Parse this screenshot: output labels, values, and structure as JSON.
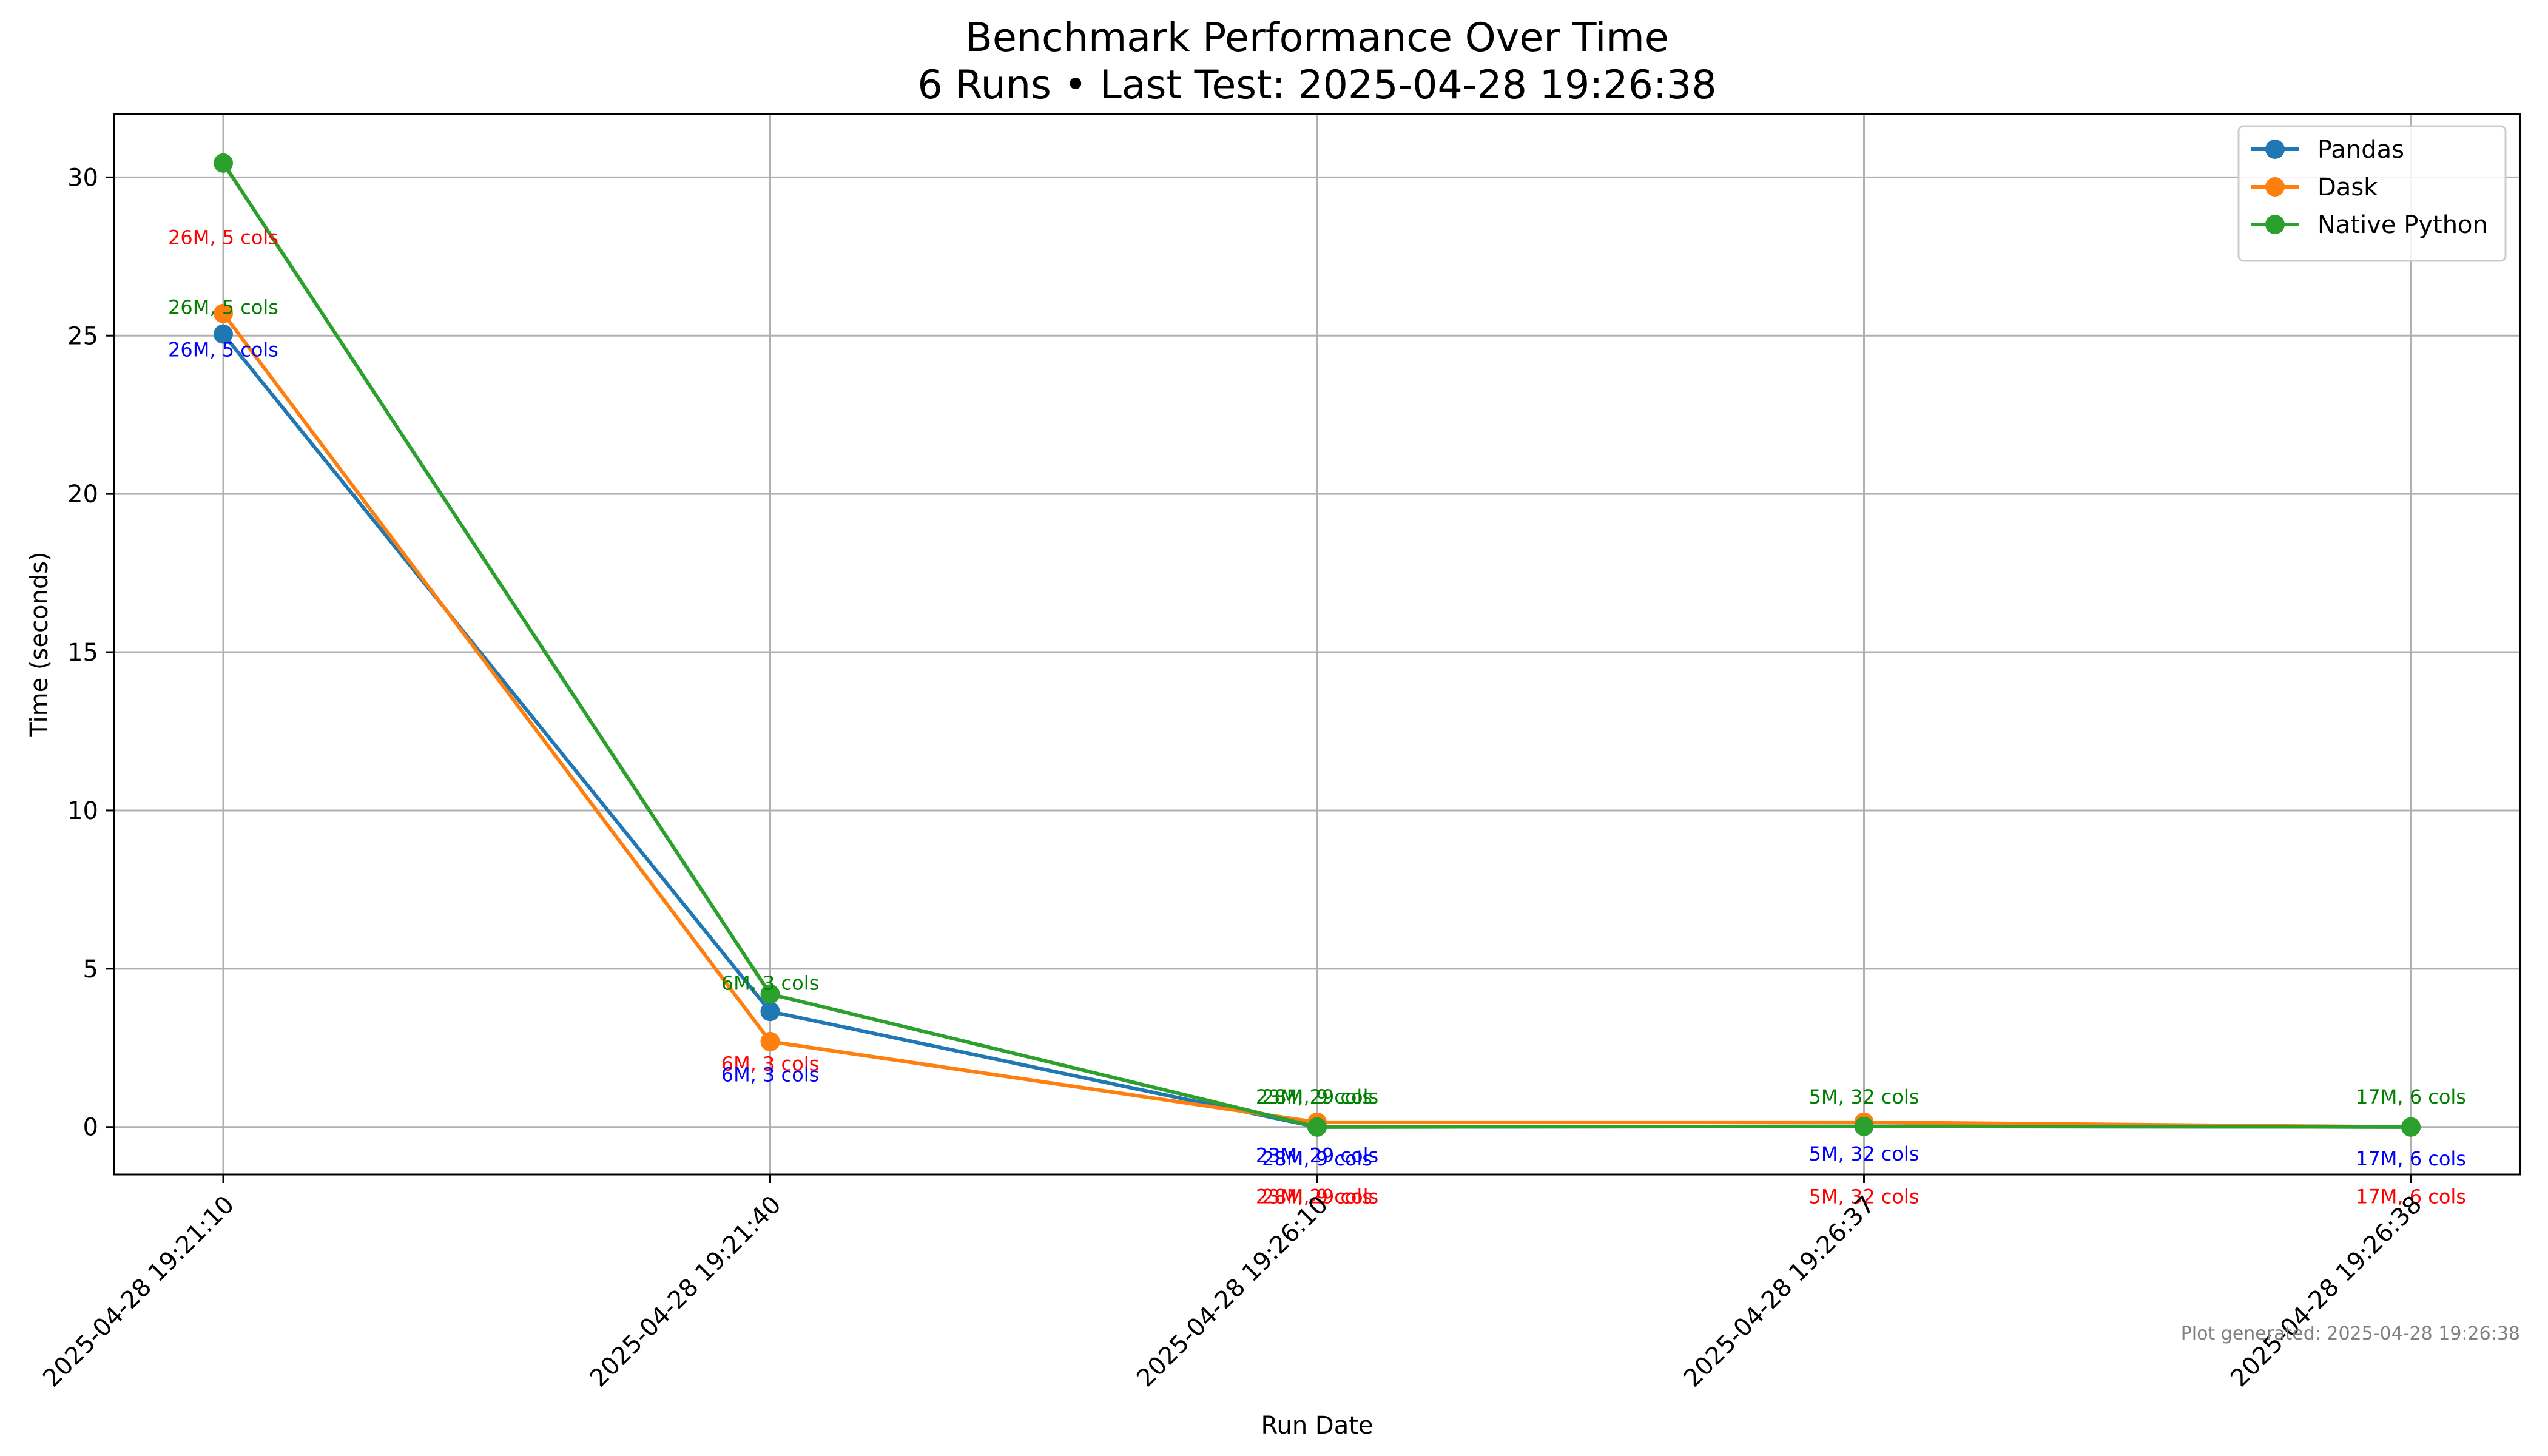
{
  "chart_data": {
    "type": "line",
    "title": "Benchmark Performance Over Time",
    "subtitle": "6 Runs • Last Test: 2025-04-28 19:26:38",
    "xlabel": "Run Date",
    "ylabel": "Time (seconds)",
    "categories": [
      "2025-04-28 19:21:10",
      "2025-04-28 19:21:40",
      "2025-04-28 19:26:10",
      "2025-04-28 19:26:37",
      "2025-04-28 19:26:38"
    ],
    "ylim": [
      -1.5,
      32
    ],
    "yticks": [
      0,
      5,
      10,
      15,
      20,
      25,
      30
    ],
    "grid": true,
    "legend_position": "top-right",
    "series": [
      {
        "name": "Pandas",
        "color": "#1f77b4",
        "values": [
          25.05,
          3.65,
          0.0,
          0.02,
          0.0
        ]
      },
      {
        "name": "Dask",
        "color": "#ff7f0e",
        "values": [
          25.7,
          2.7,
          0.15,
          0.15,
          0.0
        ]
      },
      {
        "name": "Native Python",
        "color": "#2ca02c",
        "values": [
          30.45,
          4.2,
          0.0,
          0.02,
          0.0
        ]
      }
    ],
    "annotations": [
      {
        "text": "26M, 5 cols",
        "color": "#ff0000",
        "index": 0,
        "y": 28.1
      },
      {
        "text": "26M, 5 cols",
        "color": "#008000",
        "index": 0,
        "y": 25.9
      },
      {
        "text": "26M, 5 cols",
        "color": "#0000ff",
        "index": 0,
        "y": 24.55
      },
      {
        "text": "6M, 3 cols",
        "color": "#008000",
        "index": 1,
        "y": 4.55
      },
      {
        "text": "6M, 3 cols",
        "color": "#ff0000",
        "index": 1,
        "y": 2.0
      },
      {
        "text": "6M, 3 cols",
        "color": "#0000ff",
        "index": 1,
        "y": 1.65
      },
      {
        "text": "23M, 29 cols",
        "color": "#008000",
        "index": 2,
        "y": 0.95
      },
      {
        "text": "28M, 9 cols",
        "color": "#008000",
        "index": 2,
        "y": 0.95
      },
      {
        "text": "23M, 29 cols",
        "color": "#0000ff",
        "index": 2,
        "y": -0.9
      },
      {
        "text": "28M, 9 cols",
        "color": "#0000ff",
        "index": 2,
        "y": -1.0
      },
      {
        "text": "23M, 29 cols",
        "color": "#ff0000",
        "index": 2,
        "y": -2.2
      },
      {
        "text": "28M, 9 cols",
        "color": "#ff0000",
        "index": 2,
        "y": -2.2
      },
      {
        "text": "5M, 32 cols",
        "color": "#008000",
        "index": 3,
        "y": 0.95
      },
      {
        "text": "5M, 32 cols",
        "color": "#0000ff",
        "index": 3,
        "y": -0.85
      },
      {
        "text": "5M, 32 cols",
        "color": "#ff0000",
        "index": 3,
        "y": -2.2
      },
      {
        "text": "17M, 6 cols",
        "color": "#008000",
        "index": 4,
        "y": 0.95
      },
      {
        "text": "17M, 6 cols",
        "color": "#0000ff",
        "index": 4,
        "y": -1.0
      },
      {
        "text": "17M, 6 cols",
        "color": "#ff0000",
        "index": 4,
        "y": -2.2
      }
    ],
    "footer_note": "Plot generated: 2025-04-28 19:26:38"
  }
}
